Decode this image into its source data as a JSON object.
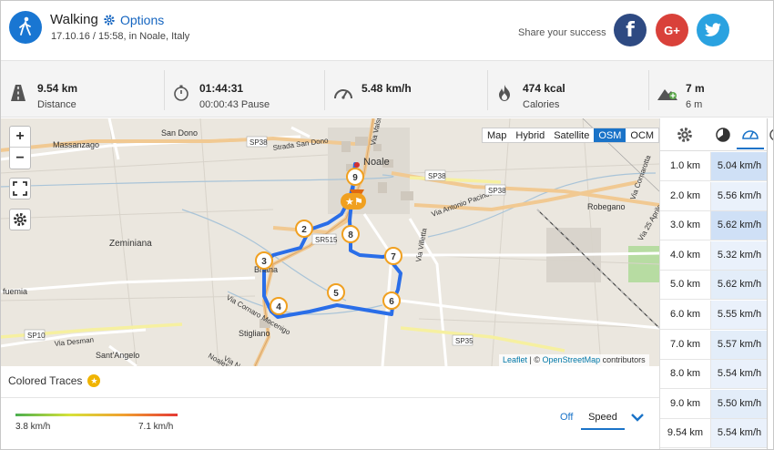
{
  "activity": {
    "title": "Walking",
    "options_label": "Options",
    "subtitle": "17.10.16 / 15:58, in Noale, Italy"
  },
  "share": {
    "label": "Share your success",
    "facebook": "f",
    "google": "G+",
    "twitter_icon": "twitter-bird-icon"
  },
  "stats": [
    {
      "icon": "road-icon",
      "value": "9.54 km",
      "label": "Distance"
    },
    {
      "icon": "stopwatch-icon",
      "value": "01:44:31",
      "label": "00:00:43 Pause"
    },
    {
      "icon": "speedometer-icon",
      "value": "5.48 km/h",
      "label": ""
    },
    {
      "icon": "flame-icon",
      "value": "474 kcal",
      "label": "Calories"
    },
    {
      "icon": "elevation-icon",
      "value": "7 m",
      "label": "6 m"
    }
  ],
  "map": {
    "zoom_in": "+",
    "zoom_out": "−",
    "layers": [
      "Map",
      "Hybrid",
      "Satellite",
      "OSM",
      "OCM"
    ],
    "active_layer": "OSM",
    "attribution_leaflet": "Leaflet",
    "attribution_sep": "| ©",
    "attribution_osm": "OpenStreetMap",
    "attribution_tail": "contributors",
    "places": [
      "Massanzago",
      "San Dono",
      "Noale",
      "Zeminiana",
      "Briana",
      "Robegano",
      "Stigliano",
      "Sant'Angelo",
      "Via Desman",
      "Strada San Dono",
      "Via Antonio Pacinotti",
      "Via Valsugana",
      "Via Cornarotta",
      "Via Noalese",
      "Via Villetta",
      "Via 25 Aprile",
      "SP38",
      "SR515",
      "SP35",
      "SP10",
      "fuemia",
      "Via Cornaro Mocenigo",
      "Noalese"
    ],
    "markers": [
      "2",
      "3",
      "4",
      "5",
      "6",
      "7",
      "8",
      "9"
    ]
  },
  "traces": {
    "title": "Colored Traces",
    "min": "3.8 km/h",
    "max": "7.1 km/h",
    "off": "Off",
    "mode": "Speed"
  },
  "splits": {
    "head_icons": [
      "gear-icon",
      "pie-chart-icon",
      "speed-gauge-icon"
    ],
    "rows": [
      {
        "km": "1.0 km",
        "speed": "5.04 km/h",
        "highlight": "#cfe0f6"
      },
      {
        "km": "2.0 km",
        "speed": "5.56 km/h",
        "highlight": "#eaf1fb"
      },
      {
        "km": "3.0 km",
        "speed": "5.62 km/h",
        "highlight": "#cfe0f6"
      },
      {
        "km": "4.0 km",
        "speed": "5.32 km/h",
        "highlight": "#eaf1fb"
      },
      {
        "km": "5.0 km",
        "speed": "5.62 km/h",
        "highlight": "#e3edf9"
      },
      {
        "km": "6.0 km",
        "speed": "5.55 km/h",
        "highlight": "#eaf1fb"
      },
      {
        "km": "7.0 km",
        "speed": "5.57 km/h",
        "highlight": "#e3edf9"
      },
      {
        "km": "8.0 km",
        "speed": "5.54 km/h",
        "highlight": "#eaf1fb"
      },
      {
        "km": "9.0 km",
        "speed": "5.50 km/h",
        "highlight": "#e3edf9"
      },
      {
        "km": "9.54 km",
        "speed": "5.54 km/h",
        "highlight": "#eaf1fb"
      }
    ]
  },
  "colors": {
    "accent": "#1a73c8",
    "route": "#2a6ee8",
    "marker": "#f0a020"
  }
}
